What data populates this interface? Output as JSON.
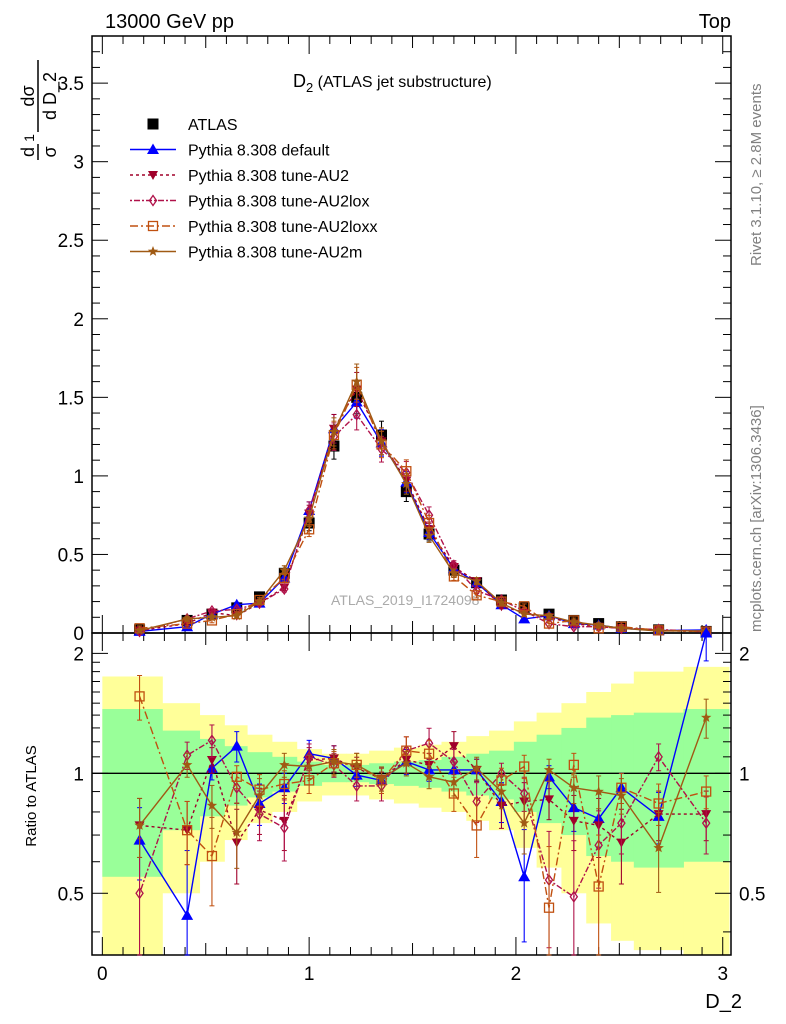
{
  "header": {
    "left": "13000 GeV pp",
    "right": "Top"
  },
  "side_labels": {
    "top": "Rivet 3.1.10, ≥ 2.8M events",
    "bottom": "mcplots.cern.ch [arXiv:1306.3436]"
  },
  "analysis_id": "ATLAS_2019_I1724098",
  "chart_data": [
    {
      "type": "line",
      "title": "D",
      "title_sub": "2",
      "title_rest": " (ATLAS jet substructure)",
      "ylabel_parts": {
        "frac1_num": "d",
        "frac1_den": "σ",
        "one": "1",
        "frac2_num": "dσ",
        "frac2_den": "d D_2"
      },
      "xlim": [
        -0.05,
        3.04
      ],
      "ylim": [
        0,
        3.8
      ],
      "x_ticks": [
        "0",
        "1",
        "2",
        "3"
      ],
      "y_ticks": [
        "0",
        "0.5",
        "1",
        "1.5",
        "2",
        "2.5",
        "3",
        "3.5"
      ],
      "legend_position": "top-left",
      "x": [
        0.18,
        0.41,
        0.53,
        0.65,
        0.76,
        0.88,
        1.0,
        1.12,
        1.23,
        1.35,
        1.47,
        1.58,
        1.7,
        1.81,
        1.93,
        2.04,
        2.16,
        2.28,
        2.4,
        2.51,
        2.69,
        2.92
      ],
      "series": [
        {
          "name": "ATLAS",
          "color": "#000000",
          "marker": "square",
          "values": [
            0.02,
            0.08,
            0.12,
            0.16,
            0.23,
            0.38,
            0.7,
            1.19,
            1.5,
            1.26,
            0.9,
            0.63,
            0.4,
            0.32,
            0.21,
            0.16,
            0.12,
            0.08,
            0.06,
            0.04,
            0.02,
            0.01
          ]
        },
        {
          "name": "Pythia 8.308 default",
          "color": "#0000ff",
          "marker": "triangle-up",
          "dash": "none",
          "values": [
            0.01,
            0.04,
            0.12,
            0.18,
            0.19,
            0.35,
            0.78,
            1.3,
            1.47,
            1.21,
            0.96,
            0.64,
            0.41,
            0.32,
            0.18,
            0.09,
            0.11,
            0.06,
            0.05,
            0.03,
            0.015,
            0.02
          ]
        },
        {
          "name": "Pythia 8.308 tune-AU2",
          "color": "#a0002a",
          "marker": "triangle-down",
          "dash": "3,3",
          "values": [
            0.015,
            0.06,
            0.13,
            0.11,
            0.19,
            0.29,
            0.76,
            1.3,
            1.55,
            1.22,
            0.97,
            0.66,
            0.42,
            0.33,
            0.17,
            0.13,
            0.1,
            0.06,
            0.04,
            0.03,
            0.016,
            0.008
          ]
        },
        {
          "name": "Pythia 8.308 tune-AU2lox",
          "color": "#b0124a",
          "marker": "diamond-open",
          "dash": "2,2,6,2",
          "values": [
            0.01,
            0.09,
            0.14,
            0.15,
            0.19,
            0.28,
            0.78,
            1.25,
            1.39,
            1.17,
            1.02,
            0.75,
            0.43,
            0.27,
            0.21,
            0.14,
            0.06,
            0.04,
            0.04,
            0.03,
            0.022,
            0.008
          ]
        },
        {
          "name": "Pythia 8.308 tune-AU2loxx",
          "color": "#c05010",
          "marker": "square-open",
          "dash": "8,3,2,3",
          "values": [
            0.03,
            0.06,
            0.08,
            0.12,
            0.21,
            0.35,
            0.66,
            1.26,
            1.58,
            1.2,
            1.03,
            0.7,
            0.36,
            0.24,
            0.2,
            0.17,
            0.06,
            0.08,
            0.03,
            0.04,
            0.017,
            0.009
          ]
        },
        {
          "name": "Pythia 8.308 tune-AU2m",
          "color": "#a05a14",
          "marker": "star",
          "dash": "none",
          "values": [
            0.015,
            0.09,
            0.1,
            0.11,
            0.2,
            0.4,
            0.73,
            1.28,
            1.6,
            1.22,
            0.95,
            0.62,
            0.38,
            0.33,
            0.19,
            0.12,
            0.11,
            0.07,
            0.05,
            0.03,
            0.013,
            0.014
          ]
        }
      ]
    },
    {
      "type": "line",
      "xlabel": "D_2",
      "ylabel": "Ratio to ATLAS",
      "xlim": [
        -0.05,
        3.04
      ],
      "ylim": [
        0.35,
        2.25
      ],
      "x_ticks": [
        "0",
        "1",
        "2",
        "3"
      ],
      "y_ticks": [
        "0.5",
        "1",
        "2"
      ],
      "reference_line": 1,
      "band_edges": [
        0.0,
        0.29,
        0.47,
        0.59,
        0.7,
        0.82,
        0.94,
        1.06,
        1.18,
        1.29,
        1.41,
        1.53,
        1.64,
        1.76,
        1.87,
        1.99,
        2.1,
        2.22,
        2.34,
        2.46,
        2.57,
        2.81,
        3.03
      ],
      "band_stat": [
        [
          0.55,
          1.45
        ],
        [
          0.72,
          1.28
        ],
        [
          0.78,
          1.22
        ],
        [
          0.83,
          1.17
        ],
        [
          0.87,
          1.13
        ],
        [
          0.9,
          1.1
        ],
        [
          0.93,
          1.07
        ],
        [
          0.95,
          1.05
        ],
        [
          0.95,
          1.05
        ],
        [
          0.94,
          1.06
        ],
        [
          0.93,
          1.07
        ],
        [
          0.92,
          1.08
        ],
        [
          0.9,
          1.1
        ],
        [
          0.88,
          1.12
        ],
        [
          0.86,
          1.14
        ],
        [
          0.8,
          1.2
        ],
        [
          0.75,
          1.25
        ],
        [
          0.7,
          1.3
        ],
        [
          0.62,
          1.38
        ],
        [
          0.6,
          1.4
        ],
        [
          0.58,
          1.42
        ],
        [
          0.6,
          1.45
        ]
      ],
      "band_total": [
        [
          0.35,
          1.75
        ],
        [
          0.5,
          1.5
        ],
        [
          0.6,
          1.4
        ],
        [
          0.68,
          1.32
        ],
        [
          0.75,
          1.25
        ],
        [
          0.8,
          1.2
        ],
        [
          0.85,
          1.15
        ],
        [
          0.88,
          1.12
        ],
        [
          0.88,
          1.12
        ],
        [
          0.86,
          1.14
        ],
        [
          0.84,
          1.16
        ],
        [
          0.82,
          1.18
        ],
        [
          0.8,
          1.2
        ],
        [
          0.76,
          1.24
        ],
        [
          0.72,
          1.28
        ],
        [
          0.65,
          1.35
        ],
        [
          0.58,
          1.42
        ],
        [
          0.5,
          1.5
        ],
        [
          0.42,
          1.6
        ],
        [
          0.38,
          1.68
        ],
        [
          0.36,
          1.8
        ],
        [
          0.35,
          1.85
        ]
      ],
      "series": [
        {
          "name": "Pythia 8.308 default",
          "color": "#0000ff",
          "marker": "triangle-up",
          "dash": "none",
          "values": [
            0.68,
            0.44,
            1.03,
            1.17,
            0.84,
            0.92,
            1.12,
            1.09,
            0.99,
            0.96,
            1.07,
            1.02,
            1.02,
            1.02,
            0.85,
            0.55,
            0.98,
            0.82,
            0.77,
            0.92,
            0.78,
            2.3
          ]
        },
        {
          "name": "Pythia 8.308 tune-AU2",
          "color": "#a0002a",
          "marker": "triangle-down",
          "dash": "3,3",
          "values": [
            0.74,
            0.72,
            1.08,
            0.67,
            0.81,
            0.76,
            1.08,
            1.09,
            1.03,
            0.97,
            1.08,
            1.05,
            1.17,
            1.02,
            0.83,
            0.85,
            0.86,
            0.76,
            0.74,
            0.67,
            0.79,
            0.79
          ]
        },
        {
          "name": "Pythia 8.308 tune-AU2lox",
          "color": "#b0124a",
          "marker": "diamond-open",
          "dash": "2,2,6,2",
          "values": [
            0.5,
            1.11,
            1.21,
            0.92,
            0.79,
            0.73,
            1.1,
            1.05,
            0.93,
            0.93,
            1.14,
            1.19,
            1.07,
            0.85,
            1.0,
            0.89,
            0.54,
            0.49,
            0.66,
            0.75,
            1.1,
            0.75
          ]
        },
        {
          "name": "Pythia 8.308 tune-AU2loxx",
          "color": "#c05010",
          "marker": "square-open",
          "dash": "8,3,2,3",
          "values": [
            1.56,
            0.72,
            0.62,
            0.98,
            0.91,
            0.94,
            0.96,
            1.06,
            1.05,
            0.96,
            1.14,
            1.12,
            0.89,
            0.74,
            0.96,
            1.04,
            0.46,
            1.05,
            0.52,
            0.92,
            0.84,
            0.9
          ]
        },
        {
          "name": "Pythia 8.308 tune-AU2m",
          "color": "#a05a14",
          "marker": "star",
          "dash": "none",
          "values": [
            0.74,
            1.05,
            0.83,
            0.71,
            0.88,
            1.05,
            1.04,
            1.07,
            1.05,
            0.97,
            1.06,
            0.98,
            0.95,
            1.03,
            0.9,
            0.75,
            1.02,
            0.92,
            0.9,
            0.88,
            0.65,
            1.38
          ]
        }
      ]
    }
  ]
}
